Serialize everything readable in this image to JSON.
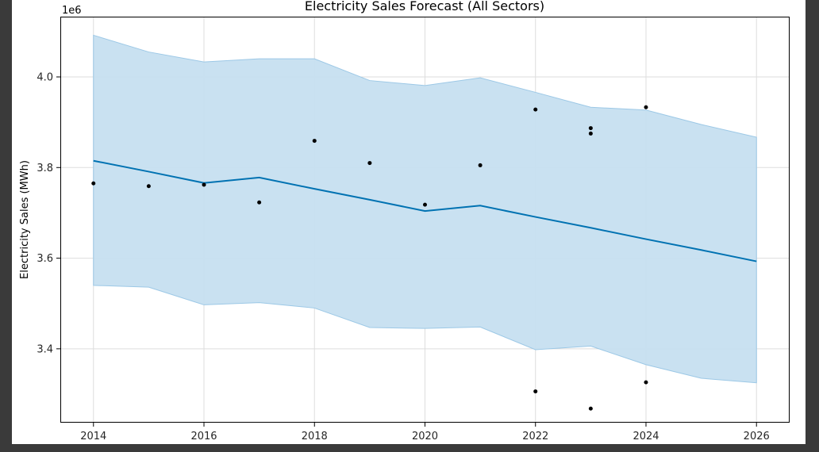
{
  "colors": {
    "forecast_line": "#0072B2",
    "interval_fill": "#c6dff0",
    "interval_edge": "#9cc8e6",
    "points": "#000000",
    "grid": "#dddddd",
    "plot_border": "#000000",
    "background": "#ffffff"
  },
  "chart_data": {
    "type": "line",
    "title": "Electricity Sales Forecast (All Sectors)",
    "xlabel": "",
    "ylabel": "Electricity Sales (MWh)",
    "y_offset_label": "1e6",
    "xlim": [
      2013.4,
      2026.6
    ],
    "ylim": [
      3.237,
      4.133
    ],
    "x_ticks": [
      2014,
      2016,
      2018,
      2020,
      2022,
      2024,
      2026
    ],
    "x_tick_labels": [
      "2014",
      "2016",
      "2018",
      "2020",
      "2022",
      "2024",
      "2026"
    ],
    "y_ticks": [
      3.4,
      3.6,
      3.8,
      4.0
    ],
    "y_tick_labels": [
      "3.4",
      "3.6",
      "3.8",
      "4.0"
    ],
    "grid": true,
    "series": [
      {
        "kind": "forecast",
        "x": [
          2014,
          2015,
          2016,
          2017,
          2018,
          2019,
          2020,
          2021,
          2022,
          2023,
          2024,
          2025,
          2026
        ],
        "y": [
          3.815,
          3.791,
          3.766,
          3.778,
          3.753,
          3.729,
          3.704,
          3.716,
          3.691,
          3.667,
          3.642,
          3.618,
          3.593
        ]
      },
      {
        "kind": "uncertainty_interval",
        "x": [
          2014,
          2015,
          2016,
          2017,
          2018,
          2019,
          2020,
          2021,
          2022,
          2023,
          2024,
          2025,
          2026
        ],
        "upper": [
          4.092,
          4.055,
          4.033,
          4.04,
          4.04,
          3.992,
          3.981,
          3.998,
          3.966,
          3.933,
          3.927,
          3.895,
          3.867
        ],
        "lower": [
          3.54,
          3.536,
          3.497,
          3.502,
          3.49,
          3.447,
          3.445,
          3.448,
          3.398,
          3.406,
          3.365,
          3.335,
          3.325
        ]
      },
      {
        "kind": "observed",
        "x": [
          2014,
          2015,
          2016,
          2017,
          2018,
          2019,
          2020,
          2021,
          2022,
          2022,
          2023,
          2023,
          2023,
          2024,
          2024
        ],
        "y": [
          3.765,
          3.759,
          3.762,
          3.723,
          3.859,
          3.81,
          3.718,
          3.805,
          3.928,
          3.306,
          3.887,
          3.875,
          3.268,
          3.933,
          3.326
        ]
      }
    ]
  }
}
